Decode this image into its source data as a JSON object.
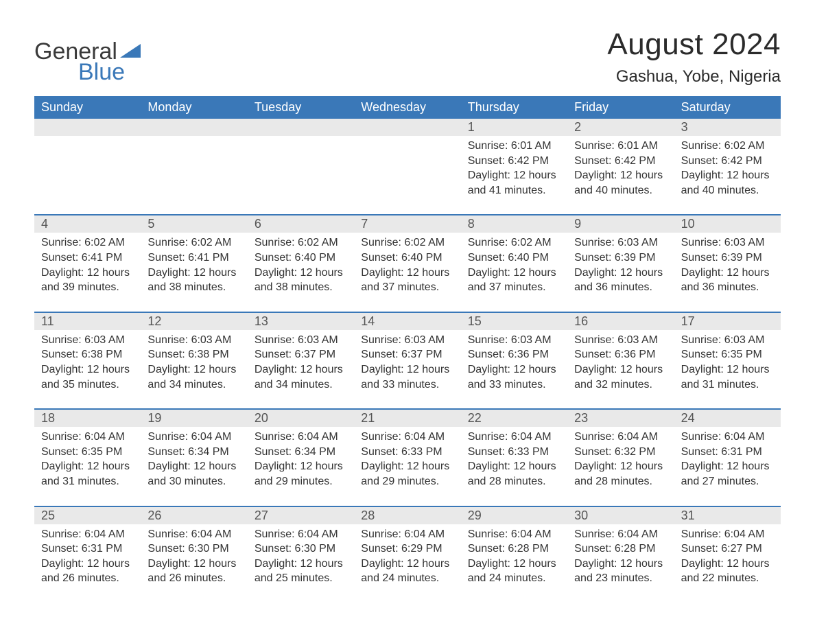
{
  "brand": {
    "word1": "General",
    "word2": "Blue"
  },
  "title": "August 2024",
  "location": "Gashua, Yobe, Nigeria",
  "colors": {
    "header_bg": "#3a78b8",
    "header_text": "#ffffff",
    "band_bg": "#e9e9e9",
    "rule": "#3a78b8",
    "text": "#333333",
    "logo_gray": "#3a3a3a",
    "logo_blue": "#3a78b8",
    "page_bg": "#ffffff"
  },
  "typography": {
    "title_fontsize": 44,
    "location_fontsize": 24,
    "dow_fontsize": 18,
    "daynum_fontsize": 18,
    "body_fontsize": 16
  },
  "dow": [
    "Sunday",
    "Monday",
    "Tuesday",
    "Wednesday",
    "Thursday",
    "Friday",
    "Saturday"
  ],
  "labels": {
    "sunrise": "Sunrise: ",
    "sunset": "Sunset: ",
    "daylight": "Daylight: "
  },
  "weeks": [
    [
      null,
      null,
      null,
      null,
      {
        "n": "1",
        "sr": "6:01 AM",
        "ss": "6:42 PM",
        "dl": "12 hours and 41 minutes."
      },
      {
        "n": "2",
        "sr": "6:01 AM",
        "ss": "6:42 PM",
        "dl": "12 hours and 40 minutes."
      },
      {
        "n": "3",
        "sr": "6:02 AM",
        "ss": "6:42 PM",
        "dl": "12 hours and 40 minutes."
      }
    ],
    [
      {
        "n": "4",
        "sr": "6:02 AM",
        "ss": "6:41 PM",
        "dl": "12 hours and 39 minutes."
      },
      {
        "n": "5",
        "sr": "6:02 AM",
        "ss": "6:41 PM",
        "dl": "12 hours and 38 minutes."
      },
      {
        "n": "6",
        "sr": "6:02 AM",
        "ss": "6:40 PM",
        "dl": "12 hours and 38 minutes."
      },
      {
        "n": "7",
        "sr": "6:02 AM",
        "ss": "6:40 PM",
        "dl": "12 hours and 37 minutes."
      },
      {
        "n": "8",
        "sr": "6:02 AM",
        "ss": "6:40 PM",
        "dl": "12 hours and 37 minutes."
      },
      {
        "n": "9",
        "sr": "6:03 AM",
        "ss": "6:39 PM",
        "dl": "12 hours and 36 minutes."
      },
      {
        "n": "10",
        "sr": "6:03 AM",
        "ss": "6:39 PM",
        "dl": "12 hours and 36 minutes."
      }
    ],
    [
      {
        "n": "11",
        "sr": "6:03 AM",
        "ss": "6:38 PM",
        "dl": "12 hours and 35 minutes."
      },
      {
        "n": "12",
        "sr": "6:03 AM",
        "ss": "6:38 PM",
        "dl": "12 hours and 34 minutes."
      },
      {
        "n": "13",
        "sr": "6:03 AM",
        "ss": "6:37 PM",
        "dl": "12 hours and 34 minutes."
      },
      {
        "n": "14",
        "sr": "6:03 AM",
        "ss": "6:37 PM",
        "dl": "12 hours and 33 minutes."
      },
      {
        "n": "15",
        "sr": "6:03 AM",
        "ss": "6:36 PM",
        "dl": "12 hours and 33 minutes."
      },
      {
        "n": "16",
        "sr": "6:03 AM",
        "ss": "6:36 PM",
        "dl": "12 hours and 32 minutes."
      },
      {
        "n": "17",
        "sr": "6:03 AM",
        "ss": "6:35 PM",
        "dl": "12 hours and 31 minutes."
      }
    ],
    [
      {
        "n": "18",
        "sr": "6:04 AM",
        "ss": "6:35 PM",
        "dl": "12 hours and 31 minutes."
      },
      {
        "n": "19",
        "sr": "6:04 AM",
        "ss": "6:34 PM",
        "dl": "12 hours and 30 minutes."
      },
      {
        "n": "20",
        "sr": "6:04 AM",
        "ss": "6:34 PM",
        "dl": "12 hours and 29 minutes."
      },
      {
        "n": "21",
        "sr": "6:04 AM",
        "ss": "6:33 PM",
        "dl": "12 hours and 29 minutes."
      },
      {
        "n": "22",
        "sr": "6:04 AM",
        "ss": "6:33 PM",
        "dl": "12 hours and 28 minutes."
      },
      {
        "n": "23",
        "sr": "6:04 AM",
        "ss": "6:32 PM",
        "dl": "12 hours and 28 minutes."
      },
      {
        "n": "24",
        "sr": "6:04 AM",
        "ss": "6:31 PM",
        "dl": "12 hours and 27 minutes."
      }
    ],
    [
      {
        "n": "25",
        "sr": "6:04 AM",
        "ss": "6:31 PM",
        "dl": "12 hours and 26 minutes."
      },
      {
        "n": "26",
        "sr": "6:04 AM",
        "ss": "6:30 PM",
        "dl": "12 hours and 26 minutes."
      },
      {
        "n": "27",
        "sr": "6:04 AM",
        "ss": "6:30 PM",
        "dl": "12 hours and 25 minutes."
      },
      {
        "n": "28",
        "sr": "6:04 AM",
        "ss": "6:29 PM",
        "dl": "12 hours and 24 minutes."
      },
      {
        "n": "29",
        "sr": "6:04 AM",
        "ss": "6:28 PM",
        "dl": "12 hours and 24 minutes."
      },
      {
        "n": "30",
        "sr": "6:04 AM",
        "ss": "6:28 PM",
        "dl": "12 hours and 23 minutes."
      },
      {
        "n": "31",
        "sr": "6:04 AM",
        "ss": "6:27 PM",
        "dl": "12 hours and 22 minutes."
      }
    ]
  ]
}
